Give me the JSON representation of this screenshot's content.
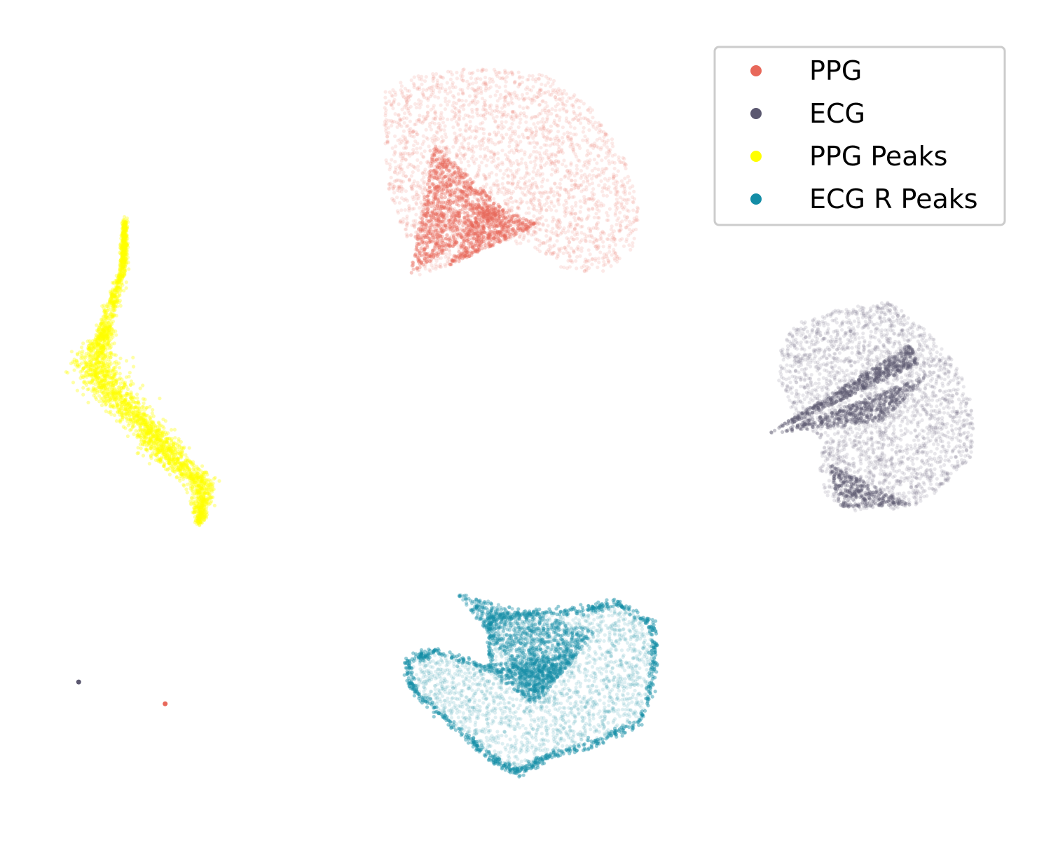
{
  "chart_data": {
    "type": "scatter",
    "title": "",
    "xlabel": "",
    "ylabel": "",
    "axes_visible": false,
    "grid": false,
    "legend_position": "top-right",
    "xlim": [
      0,
      14
    ],
    "ylim": [
      0,
      11
    ],
    "series": [
      {
        "name": "PPG",
        "color": "#e8685a",
        "alpha": 0.15,
        "cluster": {
          "center": [
            6.8,
            9.0
          ],
          "x_range": [
            5.3,
            8.6
          ],
          "y_range": [
            7.6,
            10.2
          ],
          "dense_core": [
            [
              5.5,
              7.7
            ],
            [
              6.0,
              8.9
            ],
            [
              6.9,
              8.1
            ]
          ]
        },
        "outliers": [
          [
            2.0,
            1.6
          ]
        ]
      },
      {
        "name": "ECG",
        "color": "#5b5870",
        "alpha": 0.15,
        "cluster": {
          "center": [
            11.7,
            5.4
          ],
          "x_range": [
            10.3,
            13.1
          ],
          "y_range": [
            4.2,
            6.9
          ],
          "dense_core": [
            [
              10.3,
              5.3
            ],
            [
              11.6,
              6.1
            ],
            [
              12.3,
              6.4
            ]
          ]
        },
        "outliers": [
          [
            0.8,
            1.9
          ]
        ]
      },
      {
        "name": "PPG Peaks",
        "color": "#ffff00",
        "alpha": 0.15,
        "cluster": {
          "center": [
            1.9,
            5.6
          ],
          "x_range": [
            1.1,
            2.8
          ],
          "y_range": [
            3.6,
            7.9
          ],
          "spine": [
            [
              1.6,
              7.9
            ],
            [
              1.3,
              6.4
            ],
            [
              1.9,
              5.2
            ],
            [
              2.6,
              3.6
            ]
          ]
        },
        "outliers": []
      },
      {
        "name": "ECG R Peaks",
        "color": "#138da6",
        "alpha": 0.15,
        "cluster": {
          "center": [
            7.0,
            2.0
          ],
          "x_range": [
            5.4,
            8.8
          ],
          "y_range": [
            0.7,
            3.3
          ],
          "dense_core": [
            [
              6.0,
              3.3
            ],
            [
              7.1,
              2.1
            ],
            [
              7.9,
              2.8
            ]
          ]
        },
        "outliers": []
      }
    ]
  }
}
